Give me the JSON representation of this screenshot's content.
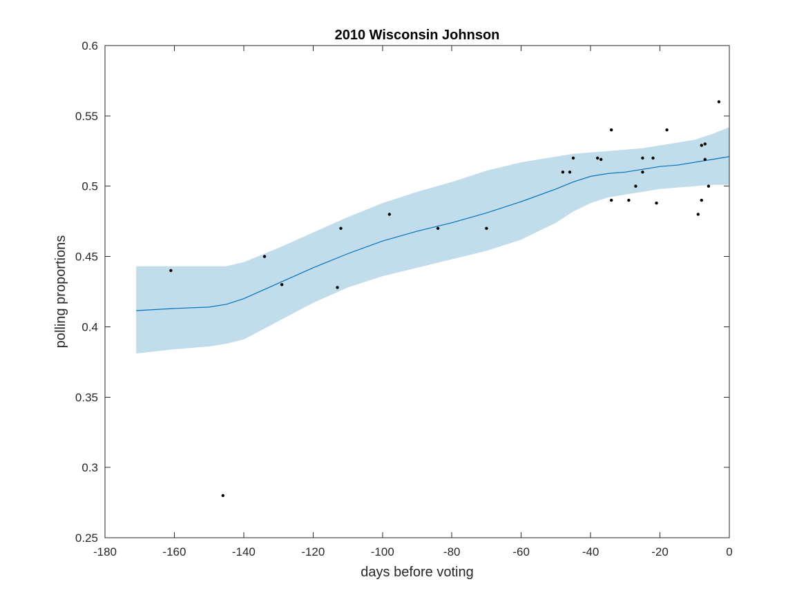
{
  "chart_data": {
    "type": "scatter",
    "title": "2010 Wisconsin Johnson",
    "xlabel": "days before voting",
    "ylabel": "polling proportions",
    "xlim": [
      -180,
      0
    ],
    "ylim": [
      0.25,
      0.6
    ],
    "xticks": [
      -180,
      -160,
      -140,
      -120,
      -100,
      -80,
      -60,
      -40,
      -20,
      0
    ],
    "yticks": [
      0.25,
      0.3,
      0.35,
      0.4,
      0.45,
      0.5,
      0.55,
      0.6
    ],
    "xtick_labels": [
      "-180",
      "-160",
      "-140",
      "-120",
      "-100",
      "-80",
      "-60",
      "-40",
      "-20",
      "0"
    ],
    "ytick_labels": [
      "0.25",
      "0.3",
      "0.35",
      "0.4",
      "0.45",
      "0.5",
      "0.55",
      "0.6"
    ],
    "grid": false,
    "colors": {
      "band": "#c1dcea",
      "trend": "#0072bd",
      "points": "#000000",
      "axes": "#262626"
    },
    "points": {
      "x": [
        -161,
        -146,
        -134,
        -129,
        -113,
        -112,
        -98,
        -84,
        -70,
        -48,
        -46,
        -45,
        -38,
        -37,
        -34,
        -34,
        -29,
        -27,
        -25,
        -25,
        -22,
        -21,
        -18,
        -9,
        -8,
        -8,
        -7,
        -7,
        -6,
        -3
      ],
      "y": [
        0.44,
        0.28,
        0.45,
        0.43,
        0.428,
        0.47,
        0.48,
        0.47,
        0.47,
        0.51,
        0.51,
        0.52,
        0.52,
        0.519,
        0.54,
        0.49,
        0.49,
        0.5,
        0.52,
        0.51,
        0.52,
        0.488,
        0.54,
        0.48,
        0.49,
        0.529,
        0.53,
        0.519,
        0.5,
        0.56
      ]
    },
    "trend": {
      "x": [
        -171,
        -160,
        -150,
        -145,
        -140,
        -130,
        -120,
        -110,
        -100,
        -90,
        -80,
        -70,
        -60,
        -50,
        -45,
        -40,
        -35,
        -30,
        -25,
        -20,
        -15,
        -10,
        -5,
        0
      ],
      "y": [
        0.4115,
        0.413,
        0.414,
        0.416,
        0.42,
        0.431,
        0.442,
        0.452,
        0.461,
        0.468,
        0.474,
        0.481,
        0.489,
        0.498,
        0.503,
        0.507,
        0.509,
        0.51,
        0.512,
        0.514,
        0.515,
        0.517,
        0.519,
        0.521
      ],
      "upper": [
        0.443,
        0.443,
        0.443,
        0.443,
        0.446,
        0.456,
        0.467,
        0.478,
        0.488,
        0.496,
        0.503,
        0.511,
        0.517,
        0.521,
        0.523,
        0.524,
        0.525,
        0.526,
        0.527,
        0.529,
        0.531,
        0.533,
        0.537,
        0.542
      ],
      "lower": [
        0.381,
        0.384,
        0.386,
        0.388,
        0.391,
        0.404,
        0.417,
        0.428,
        0.436,
        0.442,
        0.448,
        0.454,
        0.462,
        0.474,
        0.482,
        0.488,
        0.492,
        0.494,
        0.496,
        0.498,
        0.499,
        0.5,
        0.501,
        0.501
      ]
    }
  }
}
